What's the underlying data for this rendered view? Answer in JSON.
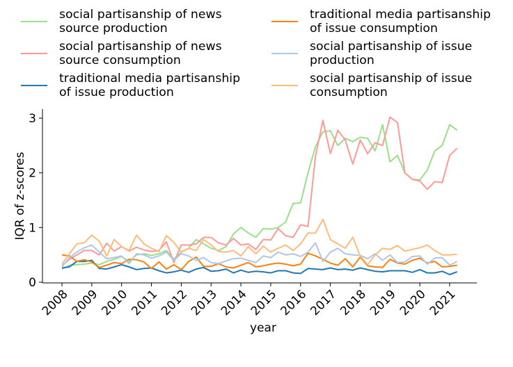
{
  "chart_data": {
    "type": "line",
    "title": "",
    "xlabel": "year",
    "ylabel": "IQR of z-scores",
    "xlim": [
      2007.6,
      2021.9
    ],
    "ylim": [
      0,
      3.15
    ],
    "xticks": [
      "2008",
      "2009",
      "2010",
      "2011",
      "2012",
      "2013",
      "2014",
      "2015",
      "2016",
      "2017",
      "2018",
      "2019",
      "2020",
      "2021"
    ],
    "yticks": [
      "0",
      "1",
      "2",
      "3"
    ],
    "grid": false,
    "legend_position": "top, 2 columns, outside plot",
    "x": [
      2008.0,
      2008.25,
      2008.5,
      2008.75,
      2009.0,
      2009.25,
      2009.5,
      2009.75,
      2010.0,
      2010.25,
      2010.5,
      2010.75,
      2011.0,
      2011.25,
      2011.5,
      2011.75,
      2012.0,
      2012.25,
      2012.5,
      2012.75,
      2013.0,
      2013.25,
      2013.5,
      2013.75,
      2014.0,
      2014.25,
      2014.5,
      2014.75,
      2015.0,
      2015.25,
      2015.5,
      2015.75,
      2016.0,
      2016.25,
      2016.5,
      2016.75,
      2017.0,
      2017.25,
      2017.5,
      2017.75,
      2018.0,
      2018.25,
      2018.5,
      2018.75,
      2019.0,
      2019.25,
      2019.5,
      2019.75,
      2020.0,
      2020.25,
      2020.5,
      2020.75,
      2021.0,
      2021.25
    ],
    "series": [
      {
        "name": "social partisanship of news source production",
        "color": "#98df8a",
        "values": [
          0.24,
          0.31,
          0.32,
          0.33,
          0.35,
          0.32,
          0.38,
          0.42,
          0.47,
          0.38,
          0.5,
          0.52,
          0.49,
          0.52,
          0.58,
          0.42,
          0.55,
          0.62,
          0.78,
          0.7,
          0.62,
          0.58,
          0.65,
          0.88,
          1.0,
          0.9,
          0.82,
          0.98,
          0.97,
          1.0,
          1.1,
          1.44,
          1.45,
          2.0,
          2.48,
          2.75,
          2.77,
          2.5,
          2.63,
          2.57,
          2.65,
          2.63,
          2.4,
          2.88,
          2.2,
          2.32,
          2.0,
          1.88,
          1.87,
          2.05,
          2.4,
          2.5,
          2.88,
          2.78
        ]
      },
      {
        "name": "social partisanship of news source consumption",
        "color": "#ff9896",
        "values": [
          0.3,
          0.42,
          0.5,
          0.58,
          0.58,
          0.5,
          0.71,
          0.57,
          0.65,
          0.57,
          0.64,
          0.59,
          0.56,
          0.58,
          0.74,
          0.36,
          0.68,
          0.68,
          0.7,
          0.82,
          0.82,
          0.72,
          0.68,
          0.8,
          0.68,
          0.7,
          0.6,
          0.78,
          0.77,
          0.98,
          0.85,
          0.82,
          1.05,
          1.02,
          2.3,
          2.96,
          2.35,
          2.78,
          2.6,
          2.16,
          2.6,
          2.35,
          2.55,
          2.5,
          3.02,
          2.92,
          2.0,
          1.88,
          1.85,
          1.7,
          1.84,
          1.82,
          2.32,
          2.45
        ]
      },
      {
        "name": "traditional media partisanship of issue production",
        "color": "#1f77b4",
        "values": [
          0.26,
          0.28,
          0.38,
          0.38,
          0.4,
          0.25,
          0.24,
          0.28,
          0.32,
          0.28,
          0.23,
          0.25,
          0.26,
          0.21,
          0.17,
          0.19,
          0.22,
          0.18,
          0.24,
          0.27,
          0.2,
          0.21,
          0.24,
          0.17,
          0.22,
          0.18,
          0.2,
          0.19,
          0.17,
          0.21,
          0.21,
          0.17,
          0.16,
          0.25,
          0.24,
          0.23,
          0.26,
          0.23,
          0.24,
          0.22,
          0.26,
          0.23,
          0.2,
          0.19,
          0.21,
          0.21,
          0.21,
          0.18,
          0.23,
          0.17,
          0.17,
          0.2,
          0.14,
          0.19
        ]
      },
      {
        "name": "traditional media partisanship of issue consumption",
        "color": "#ff7f0e",
        "values": [
          0.5,
          0.48,
          0.38,
          0.41,
          0.37,
          0.27,
          0.31,
          0.36,
          0.34,
          0.42,
          0.41,
          0.37,
          0.25,
          0.37,
          0.24,
          0.32,
          0.23,
          0.38,
          0.46,
          0.29,
          0.29,
          0.34,
          0.28,
          0.26,
          0.31,
          0.36,
          0.28,
          0.3,
          0.33,
          0.35,
          0.33,
          0.3,
          0.33,
          0.53,
          0.48,
          0.42,
          0.35,
          0.31,
          0.43,
          0.28,
          0.46,
          0.3,
          0.28,
          0.27,
          0.42,
          0.35,
          0.33,
          0.4,
          0.44,
          0.35,
          0.38,
          0.28,
          0.29,
          0.31
        ]
      },
      {
        "name": "social partisanship of issue production",
        "color": "#aec7e8",
        "values": [
          0.28,
          0.45,
          0.55,
          0.63,
          0.68,
          0.55,
          0.43,
          0.45,
          0.48,
          0.34,
          0.52,
          0.5,
          0.44,
          0.48,
          0.55,
          0.4,
          0.52,
          0.48,
          0.4,
          0.45,
          0.36,
          0.34,
          0.39,
          0.43,
          0.44,
          0.4,
          0.36,
          0.48,
          0.45,
          0.55,
          0.5,
          0.52,
          0.47,
          0.55,
          0.72,
          0.38,
          0.55,
          0.62,
          0.52,
          0.5,
          0.49,
          0.43,
          0.52,
          0.4,
          0.5,
          0.36,
          0.37,
          0.47,
          0.48,
          0.33,
          0.44,
          0.45,
          0.31,
          0.38
        ]
      },
      {
        "name": "social partisanship of issue consumption",
        "color": "#ffbb78",
        "values": [
          0.33,
          0.52,
          0.7,
          0.72,
          0.86,
          0.75,
          0.48,
          0.78,
          0.65,
          0.58,
          0.86,
          0.7,
          0.62,
          0.56,
          0.85,
          0.73,
          0.55,
          0.62,
          0.58,
          0.78,
          0.68,
          0.56,
          0.55,
          0.58,
          0.48,
          0.65,
          0.52,
          0.66,
          0.55,
          0.62,
          0.68,
          0.58,
          0.7,
          0.9,
          0.9,
          1.15,
          0.78,
          0.7,
          0.62,
          0.82,
          0.48,
          0.32,
          0.5,
          0.62,
          0.6,
          0.67,
          0.57,
          0.6,
          0.63,
          0.68,
          0.58,
          0.5,
          0.5,
          0.51
        ]
      }
    ]
  },
  "legend": {
    "items": [
      {
        "label": "social partisanship of news\nsource production",
        "color": "#98df8a"
      },
      {
        "label": "social partisanship of news\nsource consumption",
        "color": "#ff9896"
      },
      {
        "label": "traditional media partisanship\nof issue production",
        "color": "#1f77b4"
      },
      {
        "label": "traditional media partisanship\nof issue consumption",
        "color": "#ff7f0e"
      },
      {
        "label": "social partisanship of issue\nproduction",
        "color": "#aec7e8"
      },
      {
        "label": "social partisanship of issue\nconsumption",
        "color": "#ffbb78"
      }
    ]
  }
}
